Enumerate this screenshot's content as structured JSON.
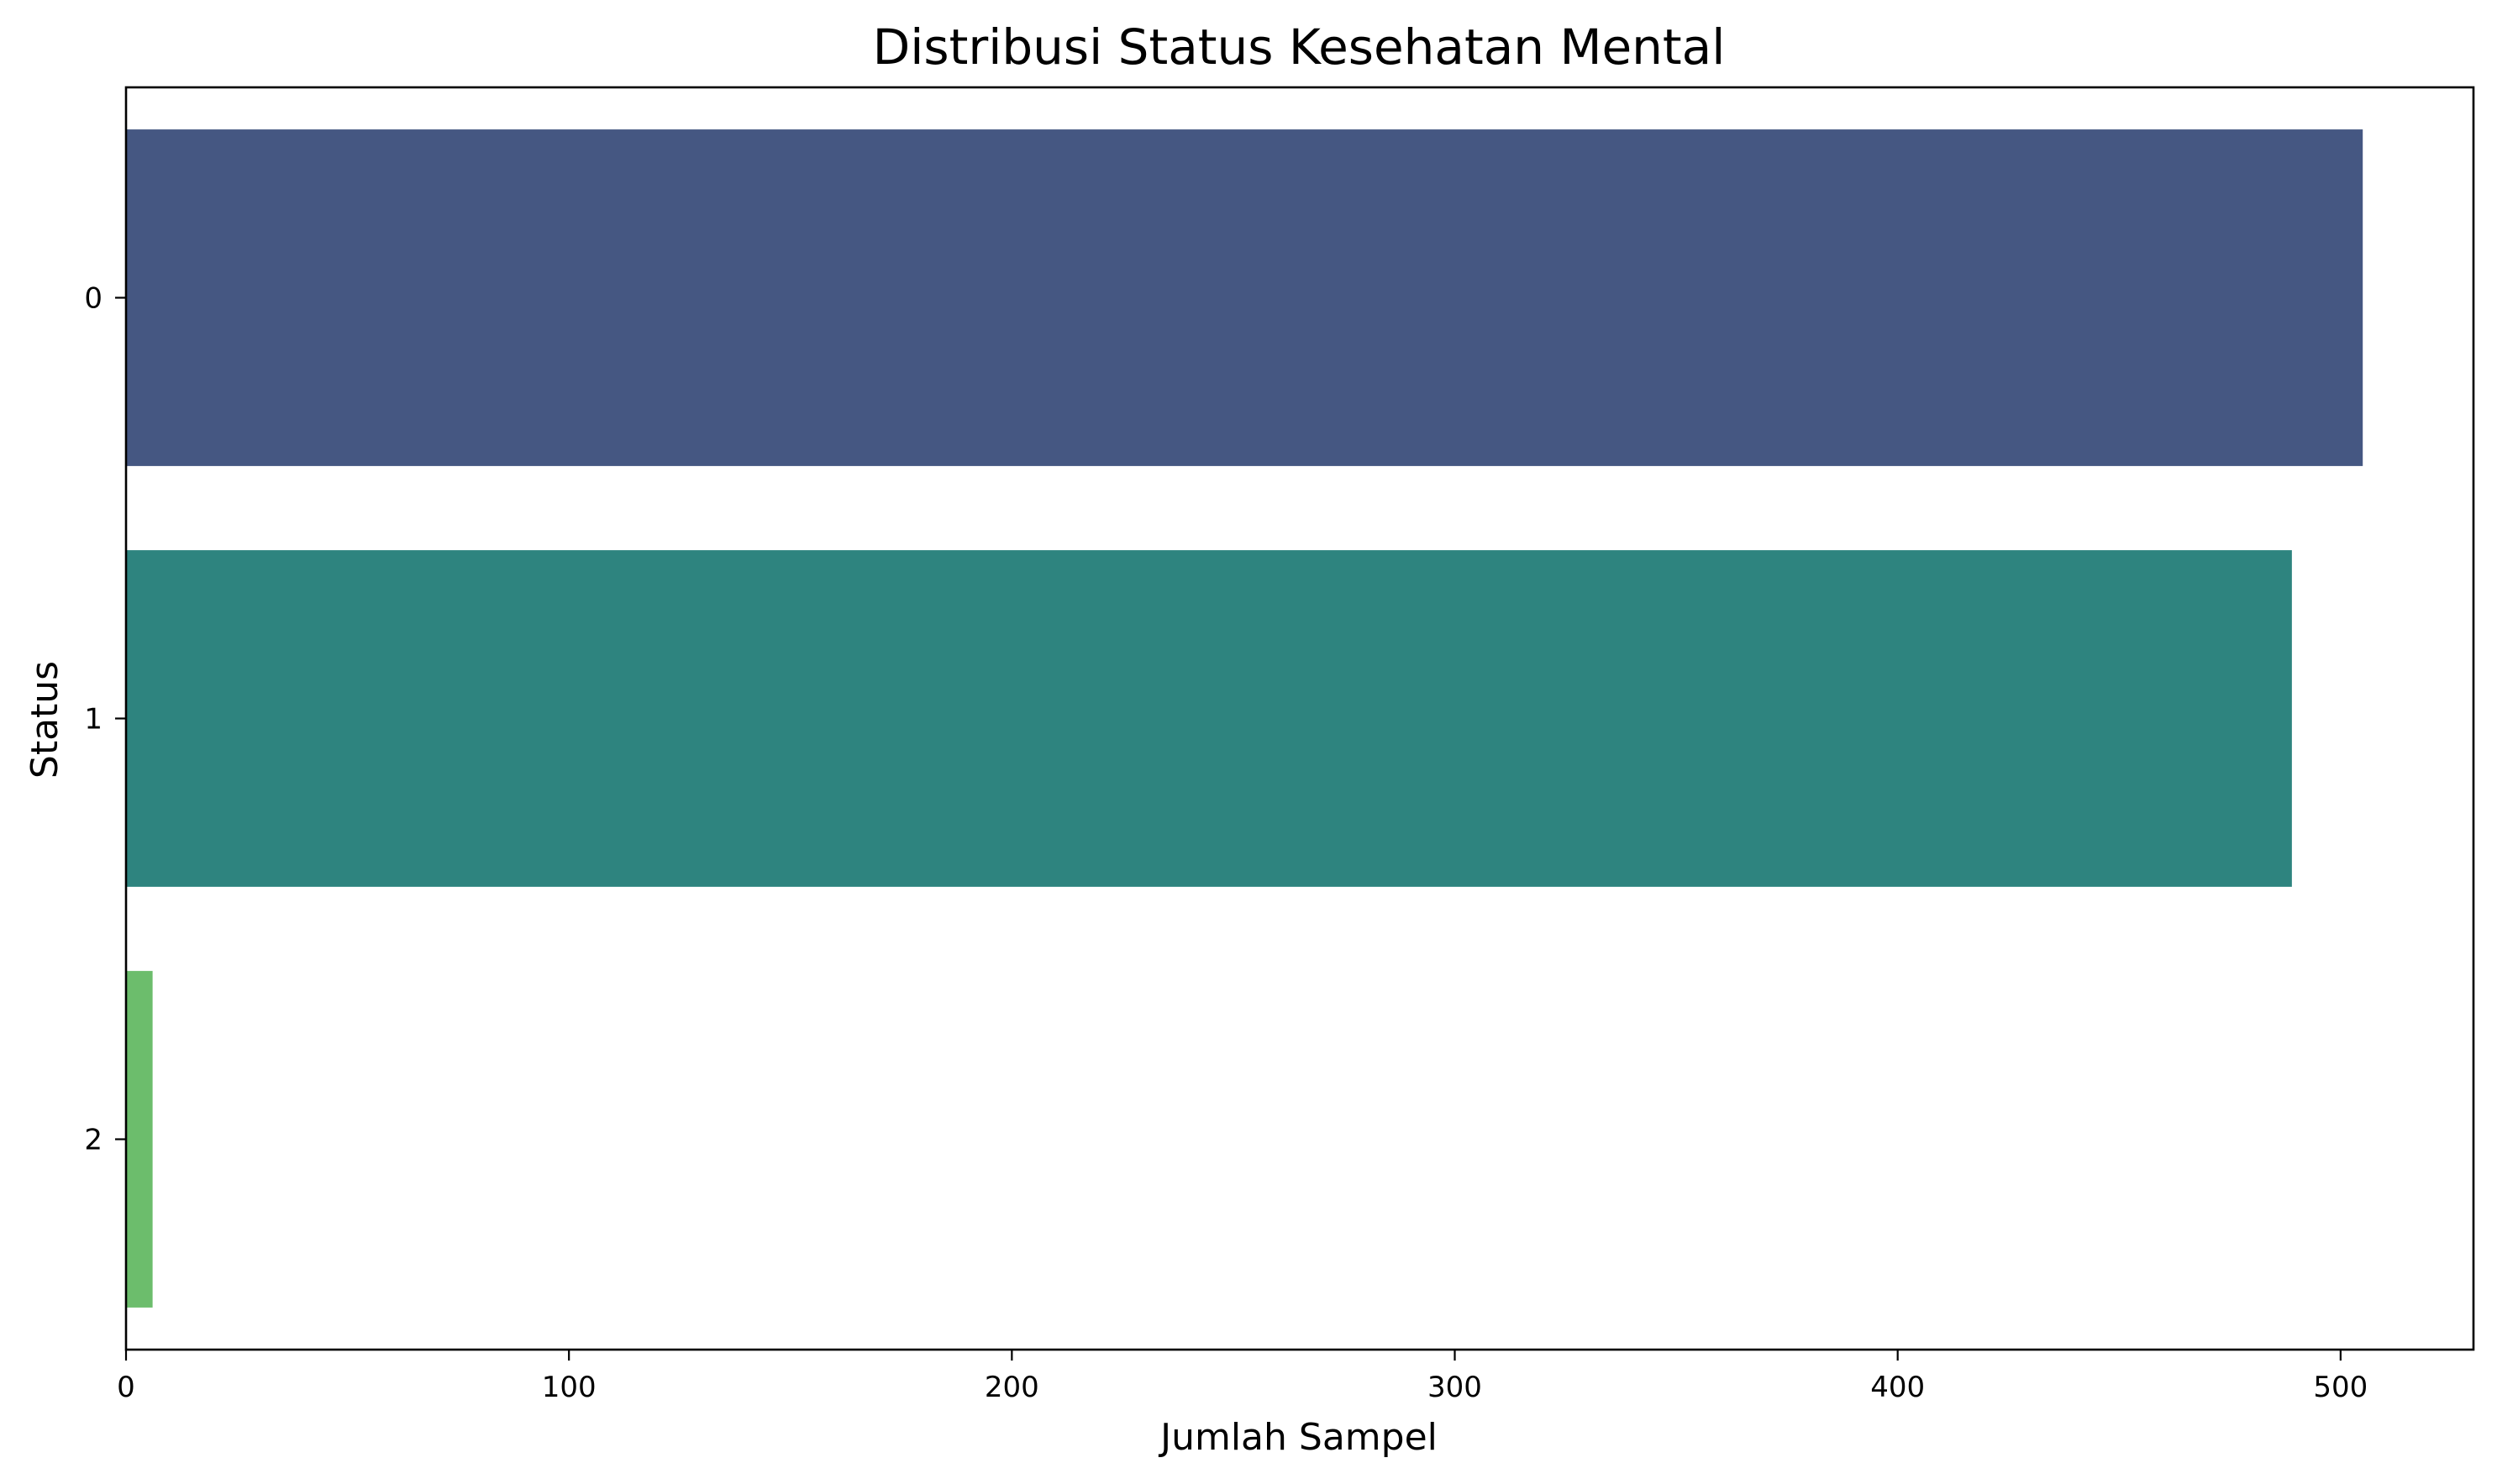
{
  "chart_data": {
    "type": "bar",
    "orientation": "horizontal",
    "title": "Distribusi Status Kesehatan Mental",
    "xlabel": "Jumlah Sampel",
    "ylabel": "Status",
    "categories": [
      "0",
      "1",
      "2"
    ],
    "values": [
      505,
      489,
      6
    ],
    "colors": [
      "#455782",
      "#2e847f",
      "#6cbd6c"
    ],
    "xlim": [
      0,
      530
    ],
    "xticks": [
      0,
      100,
      200,
      300,
      400,
      500
    ],
    "grid": false,
    "legend": "none"
  }
}
